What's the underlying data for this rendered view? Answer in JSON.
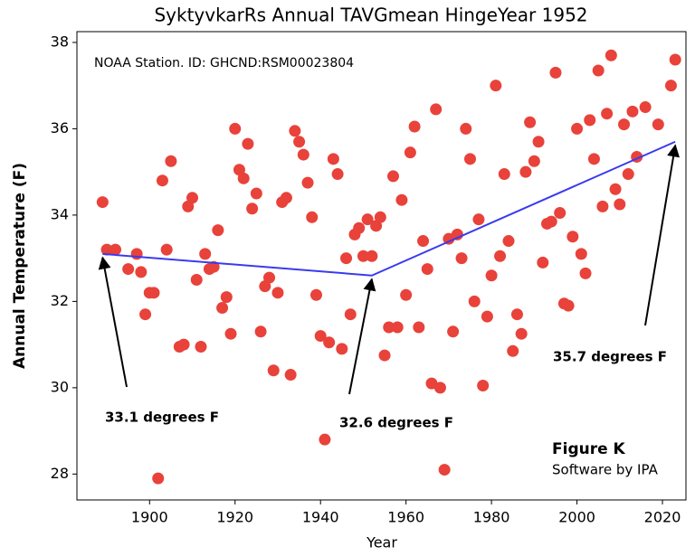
{
  "chart_data": {
    "type": "scatter",
    "title": "SyktyvkarRs Annual TAVGmean HingeYear 1952",
    "xlabel": "Year",
    "ylabel": "Annual Temperature (F)",
    "station_note": "NOAA Station. ID: GHCND:RSM00023804",
    "figure_label": "Figure K",
    "credit": "Software by IPA",
    "xlim": [
      1883,
      2025.5
    ],
    "ylim": [
      27.4,
      38.25
    ],
    "xticks": [
      1900,
      1920,
      1940,
      1960,
      1980,
      2000,
      2020
    ],
    "yticks": [
      28,
      30,
      32,
      34,
      36,
      38
    ],
    "grid": false,
    "series": [
      {
        "mode": "markers",
        "color": "#e8423a",
        "x": [
          1889,
          1890,
          1892,
          1895,
          1897,
          1898,
          1899,
          1900,
          1901,
          1902,
          1903,
          1904,
          1905,
          1907,
          1908,
          1909,
          1910,
          1911,
          1912,
          1913,
          1914,
          1915,
          1916,
          1917,
          1918,
          1919,
          1920,
          1921,
          1922,
          1923,
          1924,
          1925,
          1926,
          1927,
          1928,
          1929,
          1930,
          1931,
          1932,
          1933,
          1934,
          1935,
          1936,
          1937,
          1938,
          1939,
          1940,
          1941,
          1942,
          1943,
          1944,
          1945,
          1946,
          1947,
          1948,
          1949,
          1950,
          1951,
          1952,
          1953,
          1954,
          1955,
          1956,
          1957,
          1958,
          1959,
          1960,
          1961,
          1962,
          1963,
          1964,
          1965,
          1966,
          1967,
          1968,
          1969,
          1970,
          1971,
          1972,
          1973,
          1974,
          1975,
          1976,
          1977,
          1978,
          1979,
          1980,
          1981,
          1982,
          1983,
          1984,
          1985,
          1986,
          1987,
          1988,
          1989,
          1990,
          1991,
          1992,
          1993,
          1994,
          1995,
          1996,
          1997,
          1998,
          1999,
          2000,
          2001,
          2002,
          2003,
          2004,
          2005,
          2006,
          2007,
          2008,
          2009,
          2010,
          2011,
          2012,
          2013,
          2014,
          2016,
          2019,
          2022,
          2023
        ],
        "values": [
          34.3,
          33.2,
          33.2,
          32.75,
          33.1,
          32.68,
          31.7,
          32.2,
          32.2,
          27.9,
          34.8,
          33.2,
          35.25,
          30.95,
          31.0,
          34.2,
          34.4,
          32.5,
          30.95,
          33.1,
          32.75,
          32.8,
          33.65,
          31.85,
          32.1,
          31.25,
          36.0,
          35.05,
          34.85,
          35.65,
          34.15,
          34.5,
          31.3,
          32.35,
          32.55,
          30.4,
          32.2,
          34.3,
          34.4,
          30.3,
          35.95,
          35.7,
          35.4,
          34.75,
          33.95,
          32.15,
          31.2,
          28.8,
          31.05,
          35.3,
          34.95,
          30.9,
          33.0,
          31.7,
          33.55,
          33.7,
          33.05,
          33.9,
          33.05,
          33.75,
          33.95,
          30.75,
          31.4,
          34.9,
          31.4,
          34.35,
          32.15,
          35.45,
          36.05,
          31.4,
          33.4,
          32.75,
          30.1,
          36.45,
          30.0,
          28.1,
          33.45,
          31.3,
          33.55,
          33.0,
          36.0,
          35.3,
          32.0,
          33.9,
          30.05,
          31.65,
          32.6,
          37.0,
          33.05,
          34.95,
          33.4,
          30.85,
          31.7,
          31.25,
          35.0,
          36.15,
          35.25,
          35.7,
          32.9,
          33.8,
          33.85,
          37.3,
          34.05,
          31.95,
          31.9,
          33.5,
          36.0,
          33.1,
          32.65,
          36.2,
          35.3,
          37.35,
          34.2,
          36.35,
          37.7,
          34.6,
          34.25,
          36.1,
          34.95,
          36.4,
          35.35,
          36.5,
          36.1,
          37.0,
          37.6
        ]
      },
      {
        "mode": "line",
        "color": "#3a3af0",
        "x": [
          1889,
          1952,
          2023
        ],
        "values": [
          33.1,
          32.6,
          35.7
        ]
      }
    ],
    "annotations": [
      "33.1 degrees F",
      "32.6 degrees F",
      "35.7 degrees F"
    ]
  }
}
